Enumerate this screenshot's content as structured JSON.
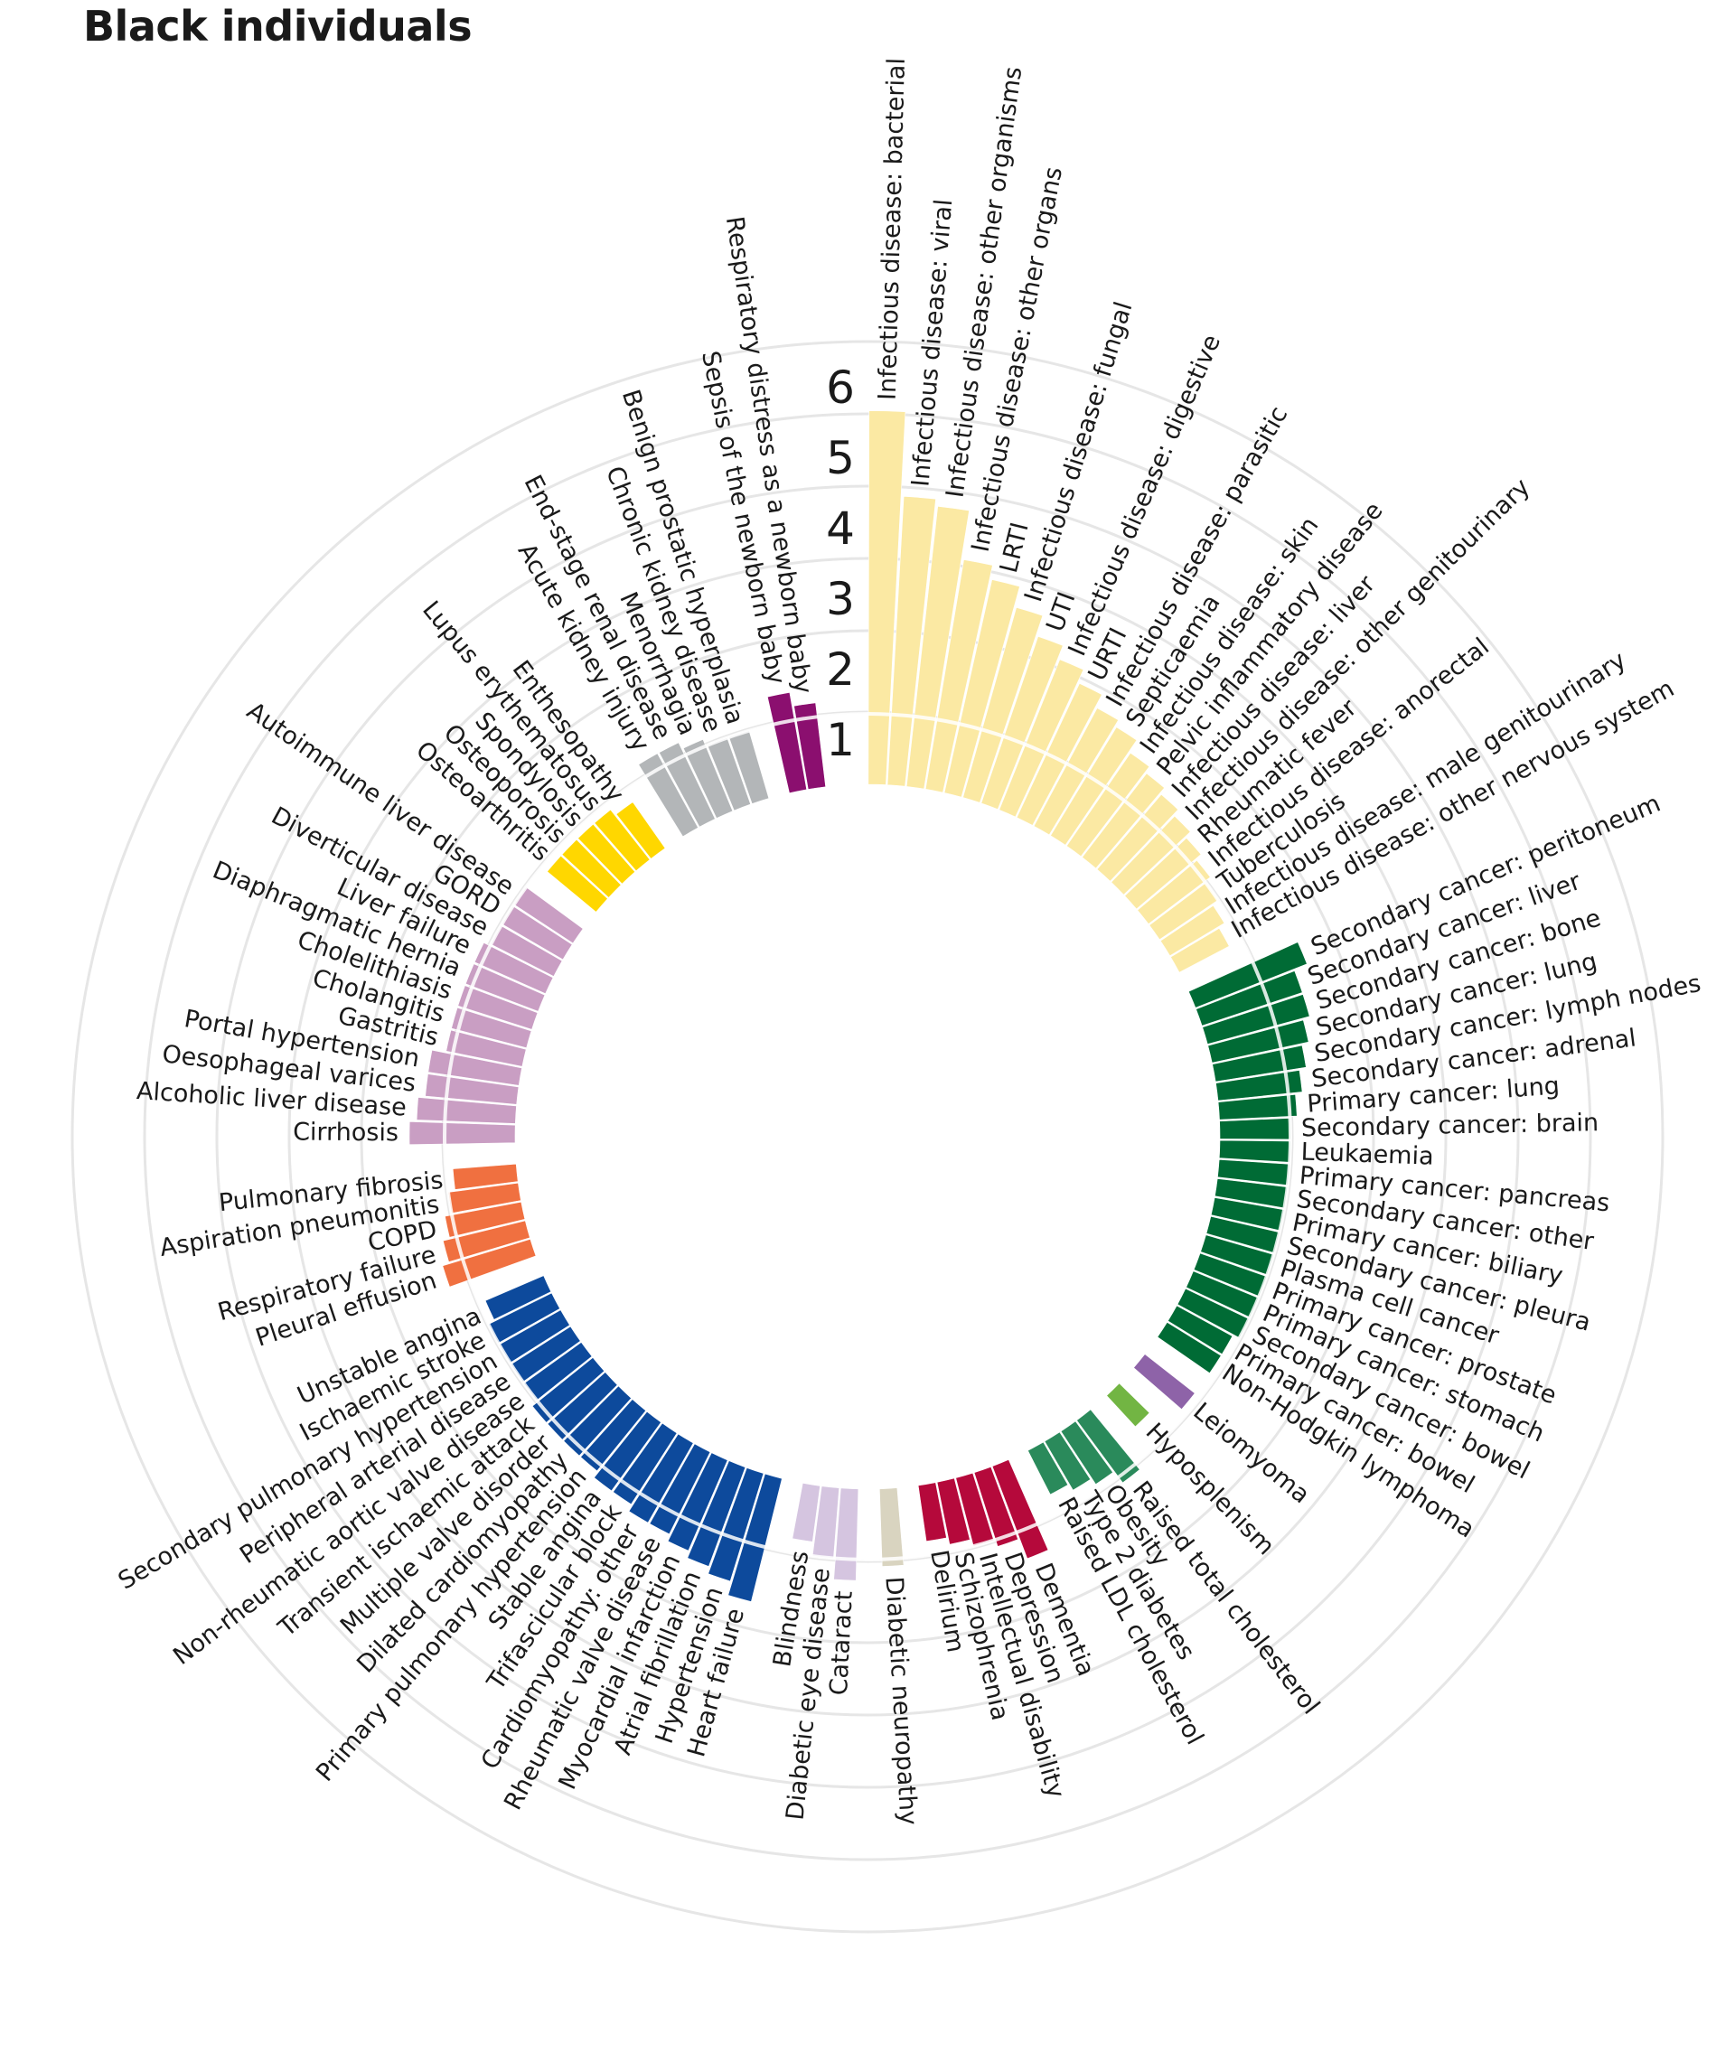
{
  "title": "Black individuals",
  "chart_data": {
    "type": "radial_bar",
    "title": "Black individuals",
    "ylim": [
      0,
      6
    ],
    "ticks": [
      "1",
      "2",
      "3",
      "4",
      "5",
      "6"
    ],
    "grid": true,
    "groups": [
      {
        "name": "",
        "color": "#fbe9a3",
        "items": [
          {
            "label": "Infectious disease: bacterial",
            "value": 5.3
          },
          {
            "label": "Infectious disease: viral",
            "value": 4.1
          },
          {
            "label": "Infectious disease: other organisms",
            "value": 4.0
          },
          {
            "label": "Infectious disease: other organs",
            "value": 3.3
          },
          {
            "label": "LRTI",
            "value": 3.1
          },
          {
            "label": "Infectious disease: fungal",
            "value": 2.8
          },
          {
            "label": "UTI",
            "value": 2.5
          },
          {
            "label": "Infectious disease: digestive",
            "value": 2.3
          },
          {
            "label": "URTI",
            "value": 2.1
          },
          {
            "label": "Infectious disease: parasitic",
            "value": 1.9
          },
          {
            "label": "Septicaemia",
            "value": 1.8
          },
          {
            "label": "Infectious disease: skin",
            "value": 1.6
          },
          {
            "label": "Pelvic inflammatory disease",
            "value": 1.5
          },
          {
            "label": "Infectious disease: liver",
            "value": 1.4
          },
          {
            "label": "Infectious disease: other genitourinary",
            "value": 1.3
          },
          {
            "label": "Rheumatic fever",
            "value": 1.2
          },
          {
            "label": "Infectious disease: anorectal",
            "value": 1.1
          },
          {
            "label": "Tuberculosis",
            "value": 1.0
          },
          {
            "label": "Infectious disease: male genitourinary",
            "value": 0.9
          },
          {
            "label": "Infectious disease: other nervous system",
            "value": 0.8
          }
        ]
      },
      {
        "name": "",
        "color": "#006b35",
        "items": [
          {
            "label": "Secondary cancer: peritoneum",
            "value": 1.7
          },
          {
            "label": "Secondary cancer: liver",
            "value": 1.5
          },
          {
            "label": "Secondary cancer: bone",
            "value": 1.5
          },
          {
            "label": "Secondary cancer: lung",
            "value": 1.4
          },
          {
            "label": "Secondary cancer: lymph nodes",
            "value": 1.3
          },
          {
            "label": "Secondary cancer: adrenal",
            "value": 1.2
          },
          {
            "label": "Primary cancer: lung",
            "value": 1.1
          },
          {
            "label": "Secondary cancer: brain",
            "value": 1.0
          },
          {
            "label": "Leukaemia",
            "value": 1.0
          },
          {
            "label": "Primary cancer: pancreas",
            "value": 1.0
          },
          {
            "label": "Secondary cancer: other",
            "value": 1.0
          },
          {
            "label": "Primary cancer: biliary",
            "value": 1.0
          },
          {
            "label": "Secondary cancer: pleura",
            "value": 1.0
          },
          {
            "label": "Plasma cell cancer",
            "value": 1.0
          },
          {
            "label": "Primary cancer: prostate",
            "value": 1.0
          },
          {
            "label": "Primary cancer: stomach",
            "value": 1.0
          },
          {
            "label": "Secondary cancer: bowel",
            "value": 1.0
          },
          {
            "label": "Primary cancer: bowel",
            "value": 0.9
          },
          {
            "label": "Non-Hodgkin lymphoma",
            "value": 0.9
          }
        ]
      },
      {
        "name": "",
        "color": "#8e63a8",
        "items": [
          {
            "label": "Leiomyoma",
            "value": 0.9
          }
        ]
      },
      {
        "name": "",
        "color": "#72b543",
        "items": [
          {
            "label": "Hyposplenism",
            "value": 0.6
          }
        ]
      },
      {
        "name": "",
        "color": "#2a8a5b",
        "items": [
          {
            "label": "Raised total cholesterol",
            "value": 1.1
          },
          {
            "label": "Obesity",
            "value": 0.9
          },
          {
            "label": "Type 2 diabetes",
            "value": 0.8
          },
          {
            "label": "Raised LDL cholesterol",
            "value": 0.7
          }
        ]
      },
      {
        "name": "",
        "color": "#b5093b",
        "items": [
          {
            "label": "Dementia",
            "value": 1.4
          },
          {
            "label": "Depression",
            "value": 1.1
          },
          {
            "label": "Intellectual disability",
            "value": 1.0
          },
          {
            "label": "Schizophrenia",
            "value": 0.9
          },
          {
            "label": "Delirium",
            "value": 0.8
          }
        ]
      },
      {
        "name": "",
        "color": "#d9d4c0",
        "items": [
          {
            "label": "Diabetic neuropathy",
            "value": 1.1
          }
        ]
      },
      {
        "name": "",
        "color": "#d5c5e0",
        "items": [
          {
            "label": "Cataract",
            "value": 1.3
          },
          {
            "label": "Diabetic eye disease",
            "value": 1.0
          },
          {
            "label": "Blindness",
            "value": 0.8
          }
        ]
      },
      {
        "name": "",
        "color": "#0d4a9c",
        "items": [
          {
            "label": "Heart failure",
            "value": 1.8
          },
          {
            "label": "Hypertension",
            "value": 1.6
          },
          {
            "label": "Atrial fibrillation",
            "value": 1.5
          },
          {
            "label": "Myocardial infarction",
            "value": 1.4
          },
          {
            "label": "Rheumatic valve disease",
            "value": 1.3
          },
          {
            "label": "Cardiomyopathy: other",
            "value": 1.3
          },
          {
            "label": "Trifascicular block",
            "value": 1.2
          },
          {
            "label": "Stable angina",
            "value": 1.2
          },
          {
            "label": "Primary pulmonary hypertension",
            "value": 1.1
          },
          {
            "label": "Dilated cardiomyopathy",
            "value": 1.1
          },
          {
            "label": "Multiple valve disorder",
            "value": 1.1
          },
          {
            "label": "Transient ischaemic attack",
            "value": 1.1
          },
          {
            "label": "Non-rheumatic aortic valve disease",
            "value": 1.0
          },
          {
            "label": "Peripheral arterial disease",
            "value": 1.0
          },
          {
            "label": "Secondary pulmonary hypertension",
            "value": 1.0
          },
          {
            "label": "Ischaemic stroke",
            "value": 1.0
          },
          {
            "label": "Unstable angina",
            "value": 0.9
          }
        ]
      },
      {
        "name": "",
        "color": "#f07040",
        "items": [
          {
            "label": "Pleural effusion",
            "value": 1.3
          },
          {
            "label": "Respiratory failure",
            "value": 1.2
          },
          {
            "label": "COPD",
            "value": 1.1
          },
          {
            "label": "Aspiration pneumonitis",
            "value": 1.0
          },
          {
            "label": "Pulmonary fibrosis",
            "value": 0.9
          }
        ]
      },
      {
        "name": "",
        "color": "#c99ec3",
        "items": [
          {
            "label": "Cirrhosis",
            "value": 1.5
          },
          {
            "label": "Alcoholic liver disease",
            "value": 1.4
          },
          {
            "label": "Oesophageal varices",
            "value": 1.3
          },
          {
            "label": "Portal hypertension",
            "value": 1.3
          },
          {
            "label": "Gastritis",
            "value": 1.1
          },
          {
            "label": "Cholangitis",
            "value": 1.1
          },
          {
            "label": "Cholelithiasis",
            "value": 1.1
          },
          {
            "label": "Diaphragmatic hernia",
            "value": 1.1
          },
          {
            "label": "Liver failure",
            "value": 1.1
          },
          {
            "label": "Diverticular disease",
            "value": 1.0
          },
          {
            "label": "GORD",
            "value": 1.0
          },
          {
            "label": "Autoimmune liver disease",
            "value": 1.0
          }
        ]
      },
      {
        "name": "",
        "color": "#ffd700",
        "items": [
          {
            "label": "Osteoarthritis",
            "value": 0.9
          },
          {
            "label": "Osteoporosis",
            "value": 0.9
          },
          {
            "label": "Spondylosis",
            "value": 0.9
          },
          {
            "label": "Lupus erythematosus",
            "value": 0.9
          },
          {
            "label": "Enthesopathy",
            "value": 0.8
          }
        ]
      },
      {
        "name": "",
        "color": "#b3b6b8",
        "items": [
          {
            "label": "Acute kidney injury",
            "value": 1.2
          },
          {
            "label": "End-stage renal disease",
            "value": 1.2
          },
          {
            "label": "Menorrhagia",
            "value": 1.1
          },
          {
            "label": "Chronic kidney disease",
            "value": 1.0
          },
          {
            "label": "Benign prostatic hyperplasia",
            "value": 1.0
          }
        ]
      },
      {
        "name": "",
        "color": "#8b0f6f",
        "items": [
          {
            "label": "Sepsis of the newborn baby",
            "value": 1.4
          },
          {
            "label": "Respiratory distress as a newborn baby",
            "value": 1.2
          }
        ]
      }
    ]
  }
}
